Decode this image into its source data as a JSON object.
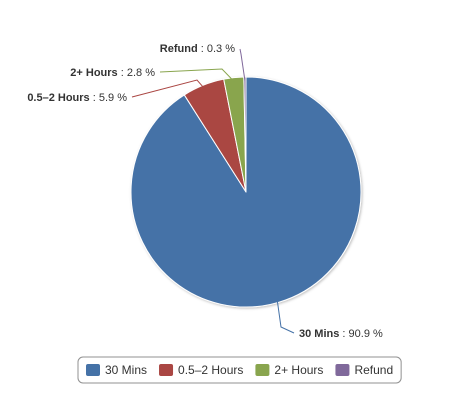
{
  "chart_data": {
    "type": "pie",
    "title": "",
    "slices": [
      {
        "name": "30 Mins",
        "value": 90.9,
        "label_value": "90.9 %",
        "color": "#4572A7"
      },
      {
        "name": "0.5–2 Hours",
        "value": 5.9,
        "label_value": "5.9 %",
        "color": "#AA4643"
      },
      {
        "name": "2+ Hours",
        "value": 2.8,
        "label_value": "2.8 %",
        "color": "#89A54E"
      },
      {
        "name": "Refund",
        "value": 0.3,
        "label_value": "0.3 %",
        "color": "#80699B"
      }
    ],
    "legend_position": "bottom-center",
    "label_separator": " : "
  }
}
